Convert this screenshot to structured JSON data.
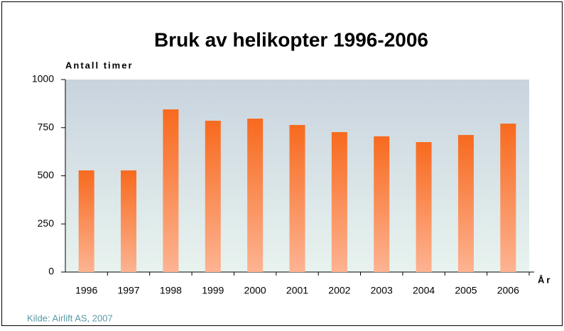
{
  "chart_data": {
    "type": "bar",
    "title": "Bruk av helikopter 1996-2006",
    "y_axis_label": "Antall timer",
    "x_axis_label": "År",
    "source": "Kilde: Airlift AS, 2007",
    "categories": [
      "1996",
      "1997",
      "1998",
      "1999",
      "2000",
      "2001",
      "2002",
      "2003",
      "2004",
      "2005",
      "2006"
    ],
    "values": [
      528,
      528,
      845,
      786,
      797,
      764,
      727,
      705,
      675,
      712,
      771
    ],
    "color": "#f76a1e",
    "ylim": [
      0,
      1000
    ],
    "yticks": [
      0,
      250,
      500,
      750,
      1000
    ],
    "grid": false
  }
}
